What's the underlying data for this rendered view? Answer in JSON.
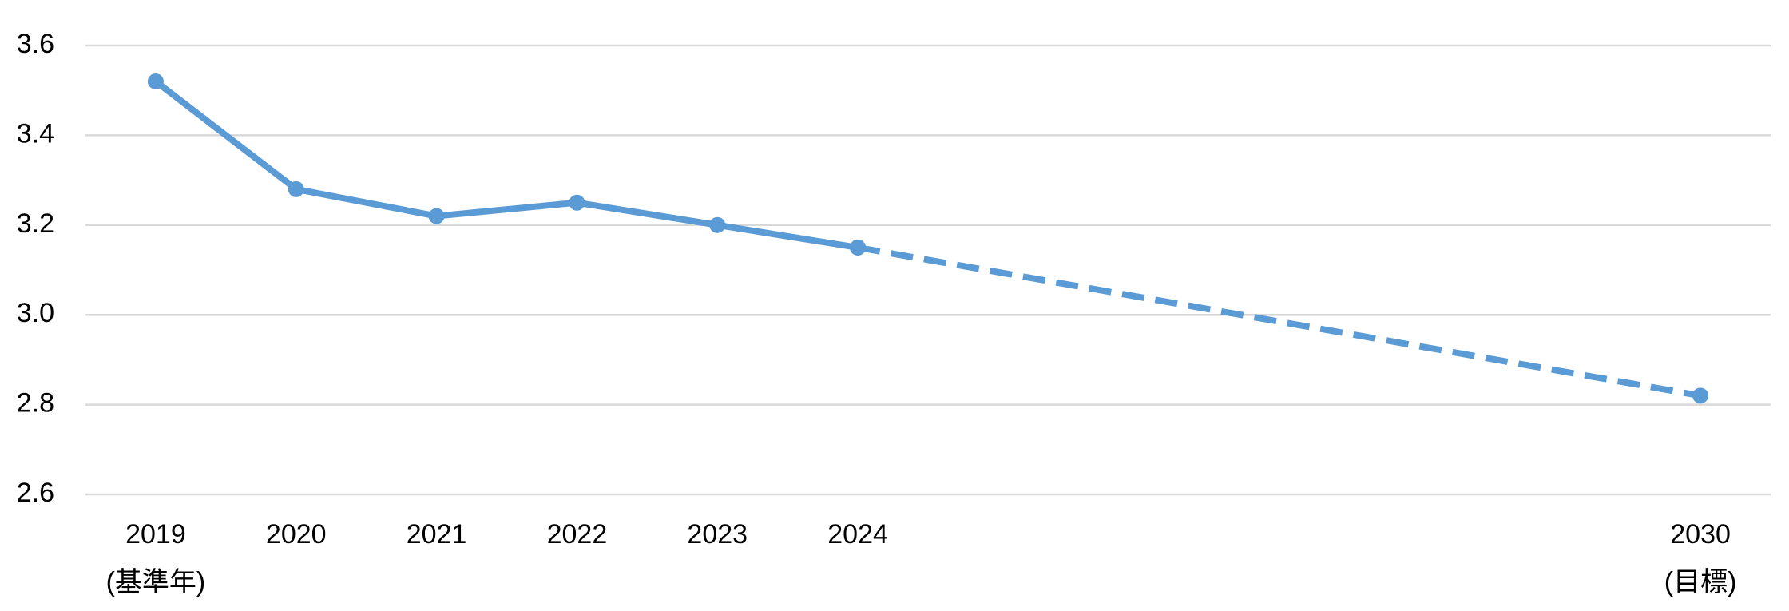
{
  "chart_data": {
    "type": "line",
    "x": [
      2019,
      2020,
      2021,
      2022,
      2023,
      2024,
      2030
    ],
    "series": [
      {
        "color": "#5b9bd5",
        "dash": false,
        "values": [
          3.52,
          3.28,
          3.22,
          3.25,
          3.2,
          3.15,
          null
        ]
      },
      {
        "color": "#5b9bd5",
        "dash": true,
        "values": [
          null,
          null,
          null,
          null,
          null,
          3.15,
          2.82
        ]
      }
    ],
    "xlim": [
      2018.5,
      2030.5
    ],
    "xticks": [
      {
        "value": 2019,
        "label": "2019\n(基準年)"
      },
      2020,
      2021,
      2022,
      2023,
      2024,
      {
        "value": 2030,
        "label": "2030\n(目標)"
      }
    ],
    "ylim": [
      2.6,
      3.6
    ],
    "yticks": [
      2.6,
      2.8,
      {
        "value": 3,
        "label": "3.0"
      },
      3.2,
      3.4,
      3.6
    ],
    "grid": true
  }
}
